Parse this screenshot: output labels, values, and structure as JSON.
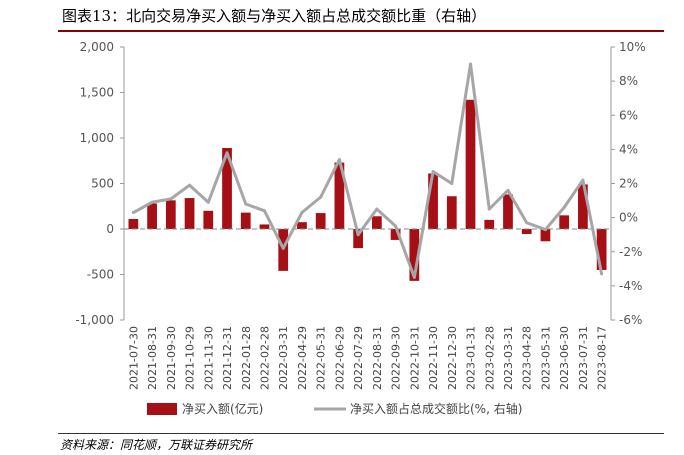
{
  "header": {
    "title": "图表13：北向交易净买入额与净买入额占总成交额比重（右轴）",
    "source": "资料来源：同花顺，万联证券研究所"
  },
  "chart_data": {
    "type": "bar",
    "categories": [
      "2021-07-30",
      "2021-08-31",
      "2021-09-30",
      "2021-10-29",
      "2021-11-30",
      "2021-12-31",
      "2022-01-28",
      "2022-02-28",
      "2022-03-31",
      "2022-04-29",
      "2022-05-31",
      "2022-06-29",
      "2022-07-29",
      "2022-08-31",
      "2022-09-30",
      "2022-10-31",
      "2022-11-30",
      "2022-12-30",
      "2023-01-31",
      "2023-02-28",
      "2023-03-31",
      "2023-04-28",
      "2023-05-31",
      "2023-06-30",
      "2023-07-31",
      "2023-08-17"
    ],
    "series": [
      {
        "name": "净买入额(亿元)",
        "type": "bar",
        "axis": "left",
        "color": "#a50f15",
        "values": [
          110,
          280,
          315,
          340,
          200,
          890,
          180,
          50,
          -460,
          75,
          175,
          730,
          -210,
          140,
          -120,
          -570,
          610,
          360,
          1420,
          100,
          380,
          -55,
          -135,
          150,
          490,
          -450
        ]
      },
      {
        "name": "净买入额占总成交额比(%, 右轴)",
        "type": "line",
        "axis": "right",
        "color": "#a6a6a6",
        "values": [
          0.3,
          0.9,
          1.1,
          1.9,
          0.9,
          3.8,
          0.8,
          0.4,
          -1.8,
          0.3,
          1.2,
          3.4,
          -1.0,
          0.5,
          -0.5,
          -3.5,
          2.7,
          2.0,
          9.0,
          0.5,
          1.6,
          -0.3,
          -0.7,
          0.6,
          2.2,
          -3.3
        ]
      }
    ],
    "y_left": {
      "min": -1000,
      "max": 2000,
      "ticks": [
        -1000,
        -500,
        0,
        500,
        1000,
        1500,
        2000
      ],
      "tick_labels": [
        "-1,000",
        "-500",
        "0",
        "500",
        "1,000",
        "1,500",
        "2,000"
      ]
    },
    "y_right": {
      "min": -6,
      "max": 10,
      "ticks": [
        -6,
        -4,
        -2,
        0,
        2,
        4,
        6,
        8,
        10
      ],
      "tick_labels": [
        "-6%",
        "-4%",
        "-2%",
        "0%",
        "2%",
        "4%",
        "6%",
        "8%",
        "10%"
      ]
    },
    "grid": false,
    "legend_position": "bottom"
  }
}
